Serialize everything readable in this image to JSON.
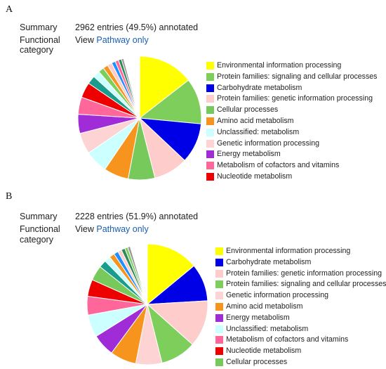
{
  "panels": [
    {
      "letter": "A",
      "summary_label": "Summary",
      "summary_value": "2962 entries (49.5%) annotated",
      "category_label_1": "Functional",
      "category_label_2": "category",
      "view_label": "View",
      "view_link": "Pathway only"
    },
    {
      "letter": "B",
      "summary_label": "Summary",
      "summary_value": "2228 entries (51.9%) annotated",
      "category_label_1": "Functional",
      "category_label_2": "category",
      "view_label": "View",
      "view_link": "Pathway only"
    }
  ],
  "colors": {
    "yellow": "#ffff00",
    "lightgreen": "#7dce5a",
    "blue": "#0000e6",
    "pink": "#ffcccc",
    "green": "#77c95b",
    "orange": "#f7941d",
    "cyan": "#ccffff",
    "lightpink": "#fdd3d3",
    "purple": "#a02cd8",
    "hotpink": "#ff6699",
    "red": "#ee0000",
    "teal": "#1a9c8c",
    "skyblue": "#1e90ff",
    "darkgreen": "#2e8b57",
    "gray": "#999999",
    "white": "#ffffff"
  },
  "chart_data": [
    {
      "type": "pie",
      "title": "",
      "legend_position": "right",
      "legend": [
        {
          "label": "Environmental information processing",
          "color": "#ffff00"
        },
        {
          "label": "Protein families: signaling and cellular processes",
          "color": "#7dce5a"
        },
        {
          "label": "Carbohydrate metabolism",
          "color": "#0000e6"
        },
        {
          "label": "Protein families: genetic information processing",
          "color": "#ffcccc"
        },
        {
          "label": "Cellular processes",
          "color": "#77c95b"
        },
        {
          "label": "Amino acid metabolism",
          "color": "#f7941d"
        },
        {
          "label": "Unclassified: metabolism",
          "color": "#ccffff"
        },
        {
          "label": "Genetic information processing",
          "color": "#fdd3d3"
        },
        {
          "label": "Energy metabolism",
          "color": "#a02cd8"
        },
        {
          "label": "Metabolism of cofactors and vitamins",
          "color": "#ff6699"
        },
        {
          "label": "Nucleotide metabolism",
          "color": "#ee0000"
        }
      ],
      "slices": [
        {
          "label": "Environmental information processing",
          "value": 14.5,
          "color": "#ffff00"
        },
        {
          "label": "Protein families: signaling and cellular processes",
          "value": 12.0,
          "color": "#7dce5a"
        },
        {
          "label": "Carbohydrate metabolism",
          "value": 10.5,
          "color": "#0000e6"
        },
        {
          "label": "Protein families: genetic information processing",
          "value": 9.0,
          "color": "#ffcccc"
        },
        {
          "label": "Cellular processes",
          "value": 7.0,
          "color": "#77c95b"
        },
        {
          "label": "Amino acid metabolism",
          "value": 6.5,
          "color": "#f7941d"
        },
        {
          "label": "Unclassified: metabolism",
          "value": 6.0,
          "color": "#ccffff"
        },
        {
          "label": "Genetic information processing",
          "value": 5.5,
          "color": "#fdd3d3"
        },
        {
          "label": "Energy metabolism",
          "value": 5.0,
          "color": "#a02cd8"
        },
        {
          "label": "Metabolism of cofactors and vitamins",
          "value": 4.5,
          "color": "#ff6699"
        },
        {
          "label": "Nucleotide metabolism",
          "value": 4.0,
          "color": "#ee0000"
        },
        {
          "label": "",
          "value": 2.2,
          "color": "#1a9c8c"
        },
        {
          "label": "",
          "value": 1.8,
          "color": "#ccffff"
        },
        {
          "label": "",
          "value": 1.5,
          "color": "#7dce5a"
        },
        {
          "label": "",
          "value": 1.3,
          "color": "#f7941d"
        },
        {
          "label": "",
          "value": 1.2,
          "color": "#ffcccc"
        },
        {
          "label": "",
          "value": 1.0,
          "color": "#1e90ff"
        },
        {
          "label": "",
          "value": 0.9,
          "color": "#ff6699"
        },
        {
          "label": "",
          "value": 0.8,
          "color": "#2e8b57"
        },
        {
          "label": "",
          "value": 0.6,
          "color": "#999999"
        },
        {
          "label": "",
          "value": 4.2,
          "color": "#ffffff"
        }
      ]
    },
    {
      "type": "pie",
      "title": "",
      "legend_position": "right",
      "legend": [
        {
          "label": "Environmental information processing",
          "color": "#ffff00"
        },
        {
          "label": "Carbohydrate metabolism",
          "color": "#0000e6"
        },
        {
          "label": "Protein families: genetic information processing",
          "color": "#ffcccc"
        },
        {
          "label": "Protein families: signaling and cellular processes",
          "color": "#7dce5a"
        },
        {
          "label": "Genetic information processing",
          "color": "#fdd3d3"
        },
        {
          "label": "Amino acid metabolism",
          "color": "#f7941d"
        },
        {
          "label": "Energy metabolism",
          "color": "#a02cd8"
        },
        {
          "label": "Unclassified: metabolism",
          "color": "#ccffff"
        },
        {
          "label": "Metabolism of cofactors and vitamins",
          "color": "#ff6699"
        },
        {
          "label": "Nucleotide metabolism",
          "color": "#ee0000"
        },
        {
          "label": "Cellular processes",
          "color": "#77c95b"
        }
      ],
      "slices": [
        {
          "label": "Environmental information processing",
          "value": 14.0,
          "color": "#ffff00"
        },
        {
          "label": "Carbohydrate metabolism",
          "value": 10.0,
          "color": "#0000e6"
        },
        {
          "label": "Protein families: genetic information processing",
          "value": 12.5,
          "color": "#ffcccc"
        },
        {
          "label": "Protein families: signaling and cellular processes",
          "value": 9.5,
          "color": "#7dce5a"
        },
        {
          "label": "Genetic information processing",
          "value": 7.0,
          "color": "#fdd3d3"
        },
        {
          "label": "Amino acid metabolism",
          "value": 7.0,
          "color": "#f7941d"
        },
        {
          "label": "Energy metabolism",
          "value": 6.0,
          "color": "#a02cd8"
        },
        {
          "label": "Unclassified: metabolism",
          "value": 6.0,
          "color": "#ccffff"
        },
        {
          "label": "Metabolism of cofactors and vitamins",
          "value": 5.0,
          "color": "#ff6699"
        },
        {
          "label": "Nucleotide metabolism",
          "value": 4.5,
          "color": "#ee0000"
        },
        {
          "label": "Cellular processes",
          "value": 4.0,
          "color": "#77c95b"
        },
        {
          "label": "",
          "value": 2.0,
          "color": "#1a9c8c"
        },
        {
          "label": "",
          "value": 1.6,
          "color": "#ccffff"
        },
        {
          "label": "",
          "value": 1.4,
          "color": "#f7941d"
        },
        {
          "label": "",
          "value": 1.2,
          "color": "#1e90ff"
        },
        {
          "label": "",
          "value": 1.0,
          "color": "#ffcccc"
        },
        {
          "label": "",
          "value": 1.0,
          "color": "#2e8b57"
        },
        {
          "label": "",
          "value": 0.8,
          "color": "#7dce5a"
        },
        {
          "label": "",
          "value": 0.7,
          "color": "#999999"
        },
        {
          "label": "",
          "value": 4.6,
          "color": "#ffffff"
        }
      ]
    }
  ]
}
